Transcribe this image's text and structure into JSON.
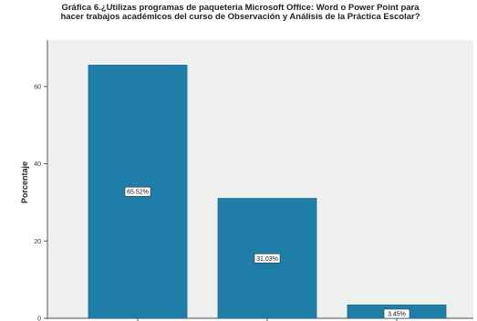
{
  "chart_data": {
    "type": "bar",
    "title_line1": "Gráfica 6.¿Utilizas programas de paqueteria Microsoft Office: Word o Power Point para",
    "title_line2": "hacer trabajos académicos del curso de Observación y Análisis de la Práctica Escolar?",
    "ylabel": "Porcentaje",
    "xlabel": "",
    "categories": [
      "",
      "",
      ""
    ],
    "values": [
      65.52,
      31.03,
      3.45
    ],
    "data_labels": [
      "65.52%",
      "31.03%",
      "3.45%"
    ],
    "yticks": [
      0,
      20,
      40,
      60
    ],
    "ylim": [
      0,
      72
    ],
    "grid": false,
    "bar_color": "#1f7ea8",
    "plot_background": "#eef0ee"
  }
}
